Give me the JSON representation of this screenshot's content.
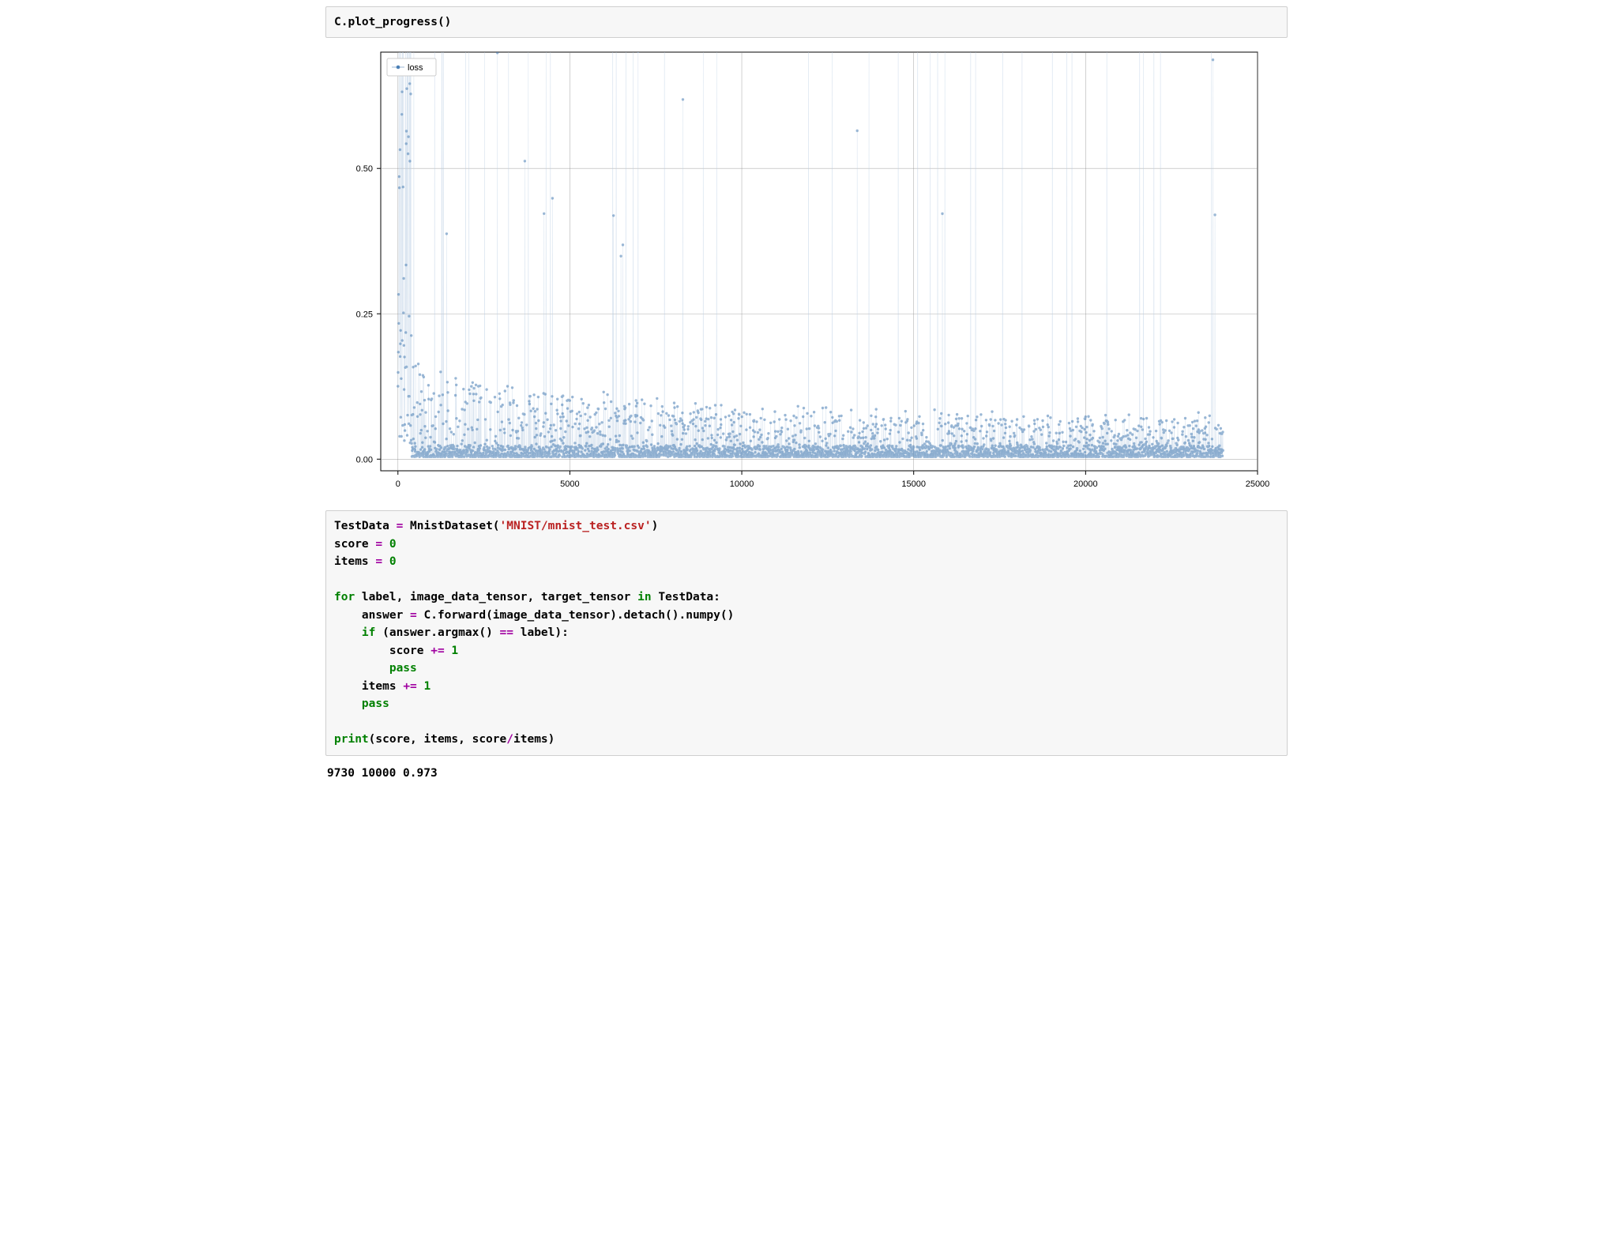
{
  "cell1": {
    "code_html": "C.plot_progress()"
  },
  "chart": {
    "type": "scatter+line",
    "legend_label": "loss",
    "xlim": [
      -500,
      25000
    ],
    "ylim": [
      -0.02,
      0.7
    ],
    "xticks": [
      0,
      5000,
      10000,
      15000,
      20000,
      25000
    ],
    "yticks": [
      0.0,
      0.25,
      0.5
    ],
    "ytick_labels": [
      "0.00",
      "0.25",
      "0.50"
    ],
    "grid_color": "#808080",
    "grid_width": 0.6,
    "axis_color": "#000000",
    "background": "#ffffff",
    "marker_color": "#4a7fb5",
    "marker_alpha": 0.55,
    "marker_radius": 1.7,
    "line_color": "#b9cde2",
    "line_alpha": 0.7,
    "line_width": 0.6,
    "label_fontsize": 11,
    "legend_bg": "#ffffff",
    "legend_border": "#cccccc",
    "n_points": 24000,
    "seed": 42
  },
  "cell2": {
    "code_html": "TestData <span class=\"tok-op\">=</span> MnistDataset(<span class=\"tok-str\">'MNIST/mnist_test.csv'</span>)\nscore <span class=\"tok-op\">=</span> <span class=\"tok-num\">0</span>\nitems <span class=\"tok-op\">=</span> <span class=\"tok-num\">0</span>\n\n<span class=\"tok-kw\">for</span> label, image_data_tensor, target_tensor <span class=\"tok-kw\">in</span> TestData:\n    answer <span class=\"tok-op\">=</span> C.forward(image_data_tensor).detach().numpy()\n    <span class=\"tok-kw\">if</span> (answer.argmax() <span class=\"tok-op\">==</span> label):\n        score <span class=\"tok-op\">+=</span> <span class=\"tok-num\">1</span>\n        <span class=\"tok-kw\">pass</span>\n    items <span class=\"tok-op\">+=</span> <span class=\"tok-num\">1</span>\n    <span class=\"tok-kw\">pass</span>\n\n<span class=\"tok-func\">print</span>(score, items, score<span class=\"tok-op\">/</span>items)"
  },
  "output2": {
    "text": "9730 10000 0.973"
  }
}
